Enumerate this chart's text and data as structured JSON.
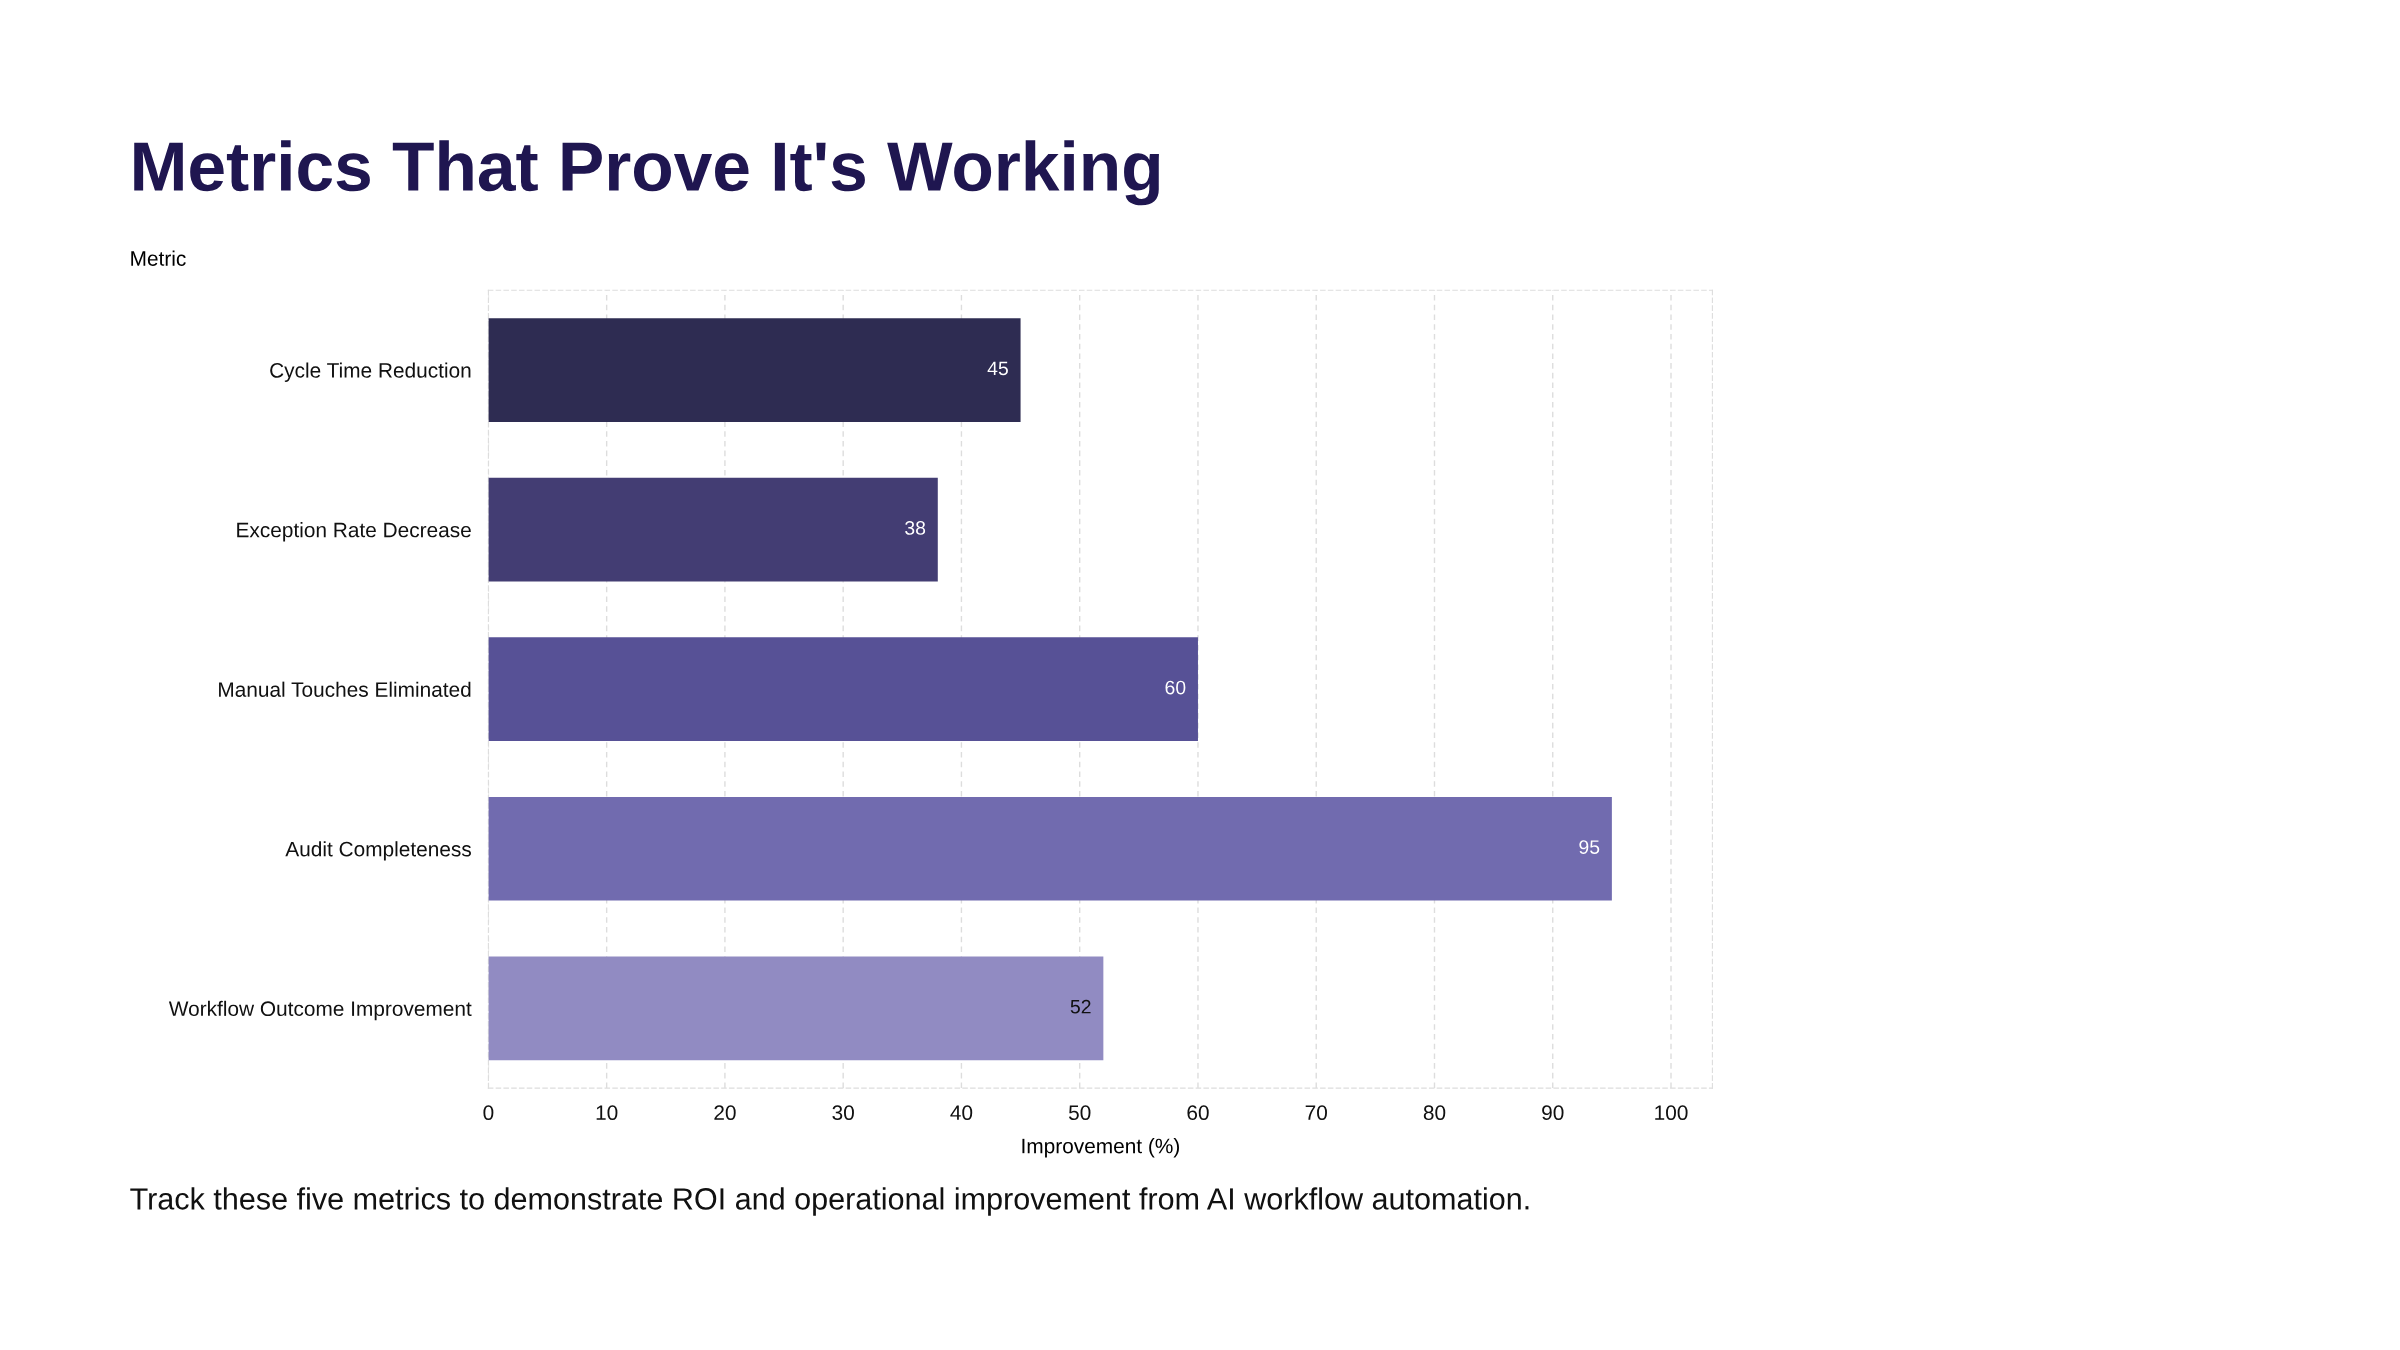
{
  "chart_data": {
    "type": "bar",
    "orientation": "horizontal",
    "title": "Metrics That Prove It's Working",
    "ylabel": "Metric",
    "xlabel": "Improvement (%)",
    "categories": [
      "Cycle Time Reduction",
      "Exception Rate Decrease",
      "Manual Touches Eliminated",
      "Audit Completeness",
      "Workflow Outcome Improvement"
    ],
    "values": [
      45,
      38,
      60,
      95,
      52
    ],
    "colors": [
      "#2e2c52",
      "#433d73",
      "#575196",
      "#716baf",
      "#918bc2"
    ],
    "xlim": [
      0,
      103.5
    ],
    "xticks": [
      0,
      10,
      20,
      30,
      40,
      50,
      60,
      70,
      80,
      90,
      100
    ],
    "grid": "x",
    "data_labels": true,
    "annotations": [
      "Track these five metrics to demonstrate ROI and operational improvement from AI workflow automation."
    ]
  }
}
